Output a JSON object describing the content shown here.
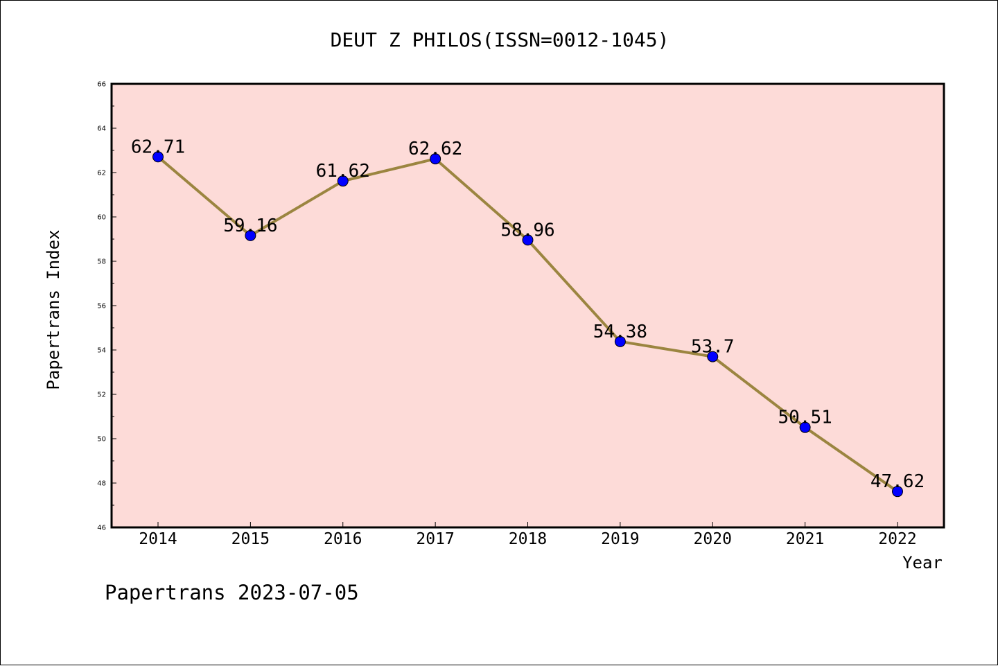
{
  "footer": "Papertrans 2023-07-05",
  "colors": {
    "plot_background": "#fddbd8",
    "line": "#9b8540",
    "marker": "#0000ff"
  },
  "chart_data": {
    "type": "line",
    "title": "DEUT Z PHILOS(ISSN=0012-1045)",
    "xlabel": "Year",
    "ylabel": "Papertrans Index",
    "x": [
      "2014",
      "2015",
      "2016",
      "2017",
      "2018",
      "2019",
      "2020",
      "2021",
      "2022"
    ],
    "series": [
      {
        "values": [
          62.71,
          59.16,
          61.62,
          62.62,
          58.96,
          54.38,
          53.7,
          50.51,
          47.62
        ],
        "labels": [
          "62.71",
          "59.16",
          "61.62",
          "62.62",
          "58.96",
          "54.38",
          "53.7",
          "50.51",
          "47.62"
        ]
      }
    ],
    "ylim": [
      46,
      66
    ],
    "yticks": [
      46,
      48,
      50,
      52,
      54,
      56,
      58,
      60,
      62,
      64,
      66
    ],
    "grid": false,
    "legend": "none"
  }
}
